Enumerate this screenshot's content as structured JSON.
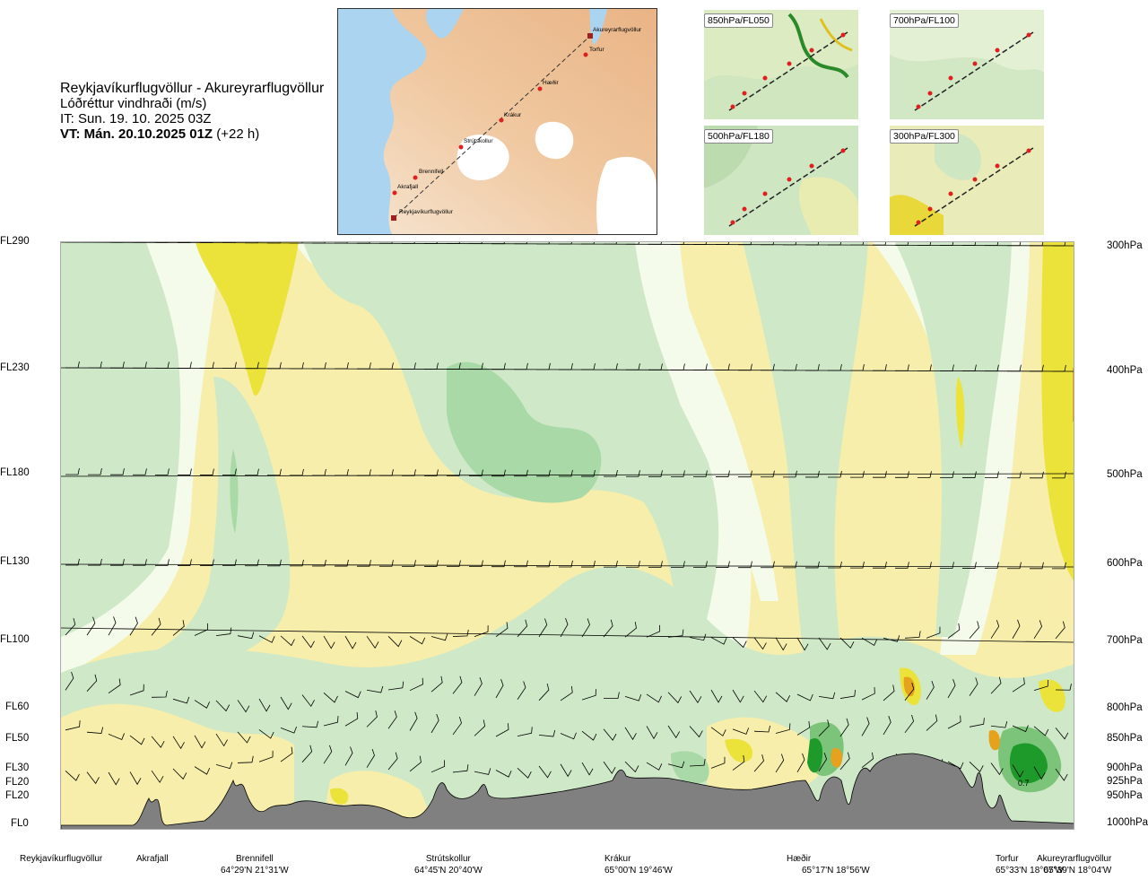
{
  "header": {
    "route": "Reykjavíkurflugvöllur - Akureyrarflugvöllur",
    "product": "Lóðréttur vindhraði (m/s)",
    "issue_time": "IT: Sun. 19. 10. 2025 03Z",
    "valid_time": "VT: Mán. 20.10.2025 01Z",
    "lead": "(+22 h)"
  },
  "map": {
    "places": [
      "Akureyrarflugvöllur",
      "Torfur",
      "Hæðir",
      "Krákur",
      "Strútskollur",
      "Brennifell",
      "Akrafjall",
      "Reykjavíkurflugvöllur"
    ]
  },
  "mini_maps": [
    {
      "label": "850hPa/FL050"
    },
    {
      "label": "700hPa/FL100"
    },
    {
      "label": "500hPa/FL180"
    },
    {
      "label": "300hPa/FL300"
    }
  ],
  "chart_data": {
    "type": "heatmap",
    "title": "Lóðréttur vindhraði (m/s)",
    "levels": [
      {
        "fl": "FL290",
        "hpa": "300hPa"
      },
      {
        "fl": "FL230",
        "hpa": "400hPa"
      },
      {
        "fl": "FL180",
        "hpa": "500hPa"
      },
      {
        "fl": "FL130",
        "hpa": "600hPa"
      },
      {
        "fl": "FL100",
        "hpa": "700hPa"
      },
      {
        "fl": "FL60",
        "hpa": "800hPa"
      },
      {
        "fl": "FL50",
        "hpa": "850hPa"
      },
      {
        "fl": "FL30",
        "hpa": "900hPa"
      },
      {
        "fl": "FL20",
        "hpa": "925hPa"
      },
      {
        "fl": "FL20",
        "hpa": "950hPa"
      },
      {
        "fl": "FL0",
        "hpa": "1000hPa"
      }
    ],
    "waypoints": [
      {
        "name": "Reykjavíkurflugvöllur",
        "coord": ""
      },
      {
        "name": "Akrafjall",
        "coord": ""
      },
      {
        "name": "Brennifell",
        "coord": "64°29'N 21°31'W"
      },
      {
        "name": "Strútskollur",
        "coord": "64°45'N 20°40'W"
      },
      {
        "name": "Krákur",
        "coord": "65°00'N 19°46'W"
      },
      {
        "name": "Hæðir",
        "coord": "65°17'N 18°56'W"
      },
      {
        "name": "Torfur",
        "coord": "65°33'N 18°07'W"
      },
      {
        "name": "Akureyrarflugvöllur",
        "coord": "65°39'N 18°04'W"
      }
    ],
    "annotation": "0.7",
    "colors": {
      "strong_down": "#1e9a2a",
      "mod_down": "#9ad49a",
      "weak_down": "#cfe9c8",
      "neutral": "#f4fbea",
      "weak_up": "#f6eeaa",
      "mod_up": "#ebe23a",
      "strong_up": "#e6a21c",
      "terrain": "#808080"
    }
  }
}
